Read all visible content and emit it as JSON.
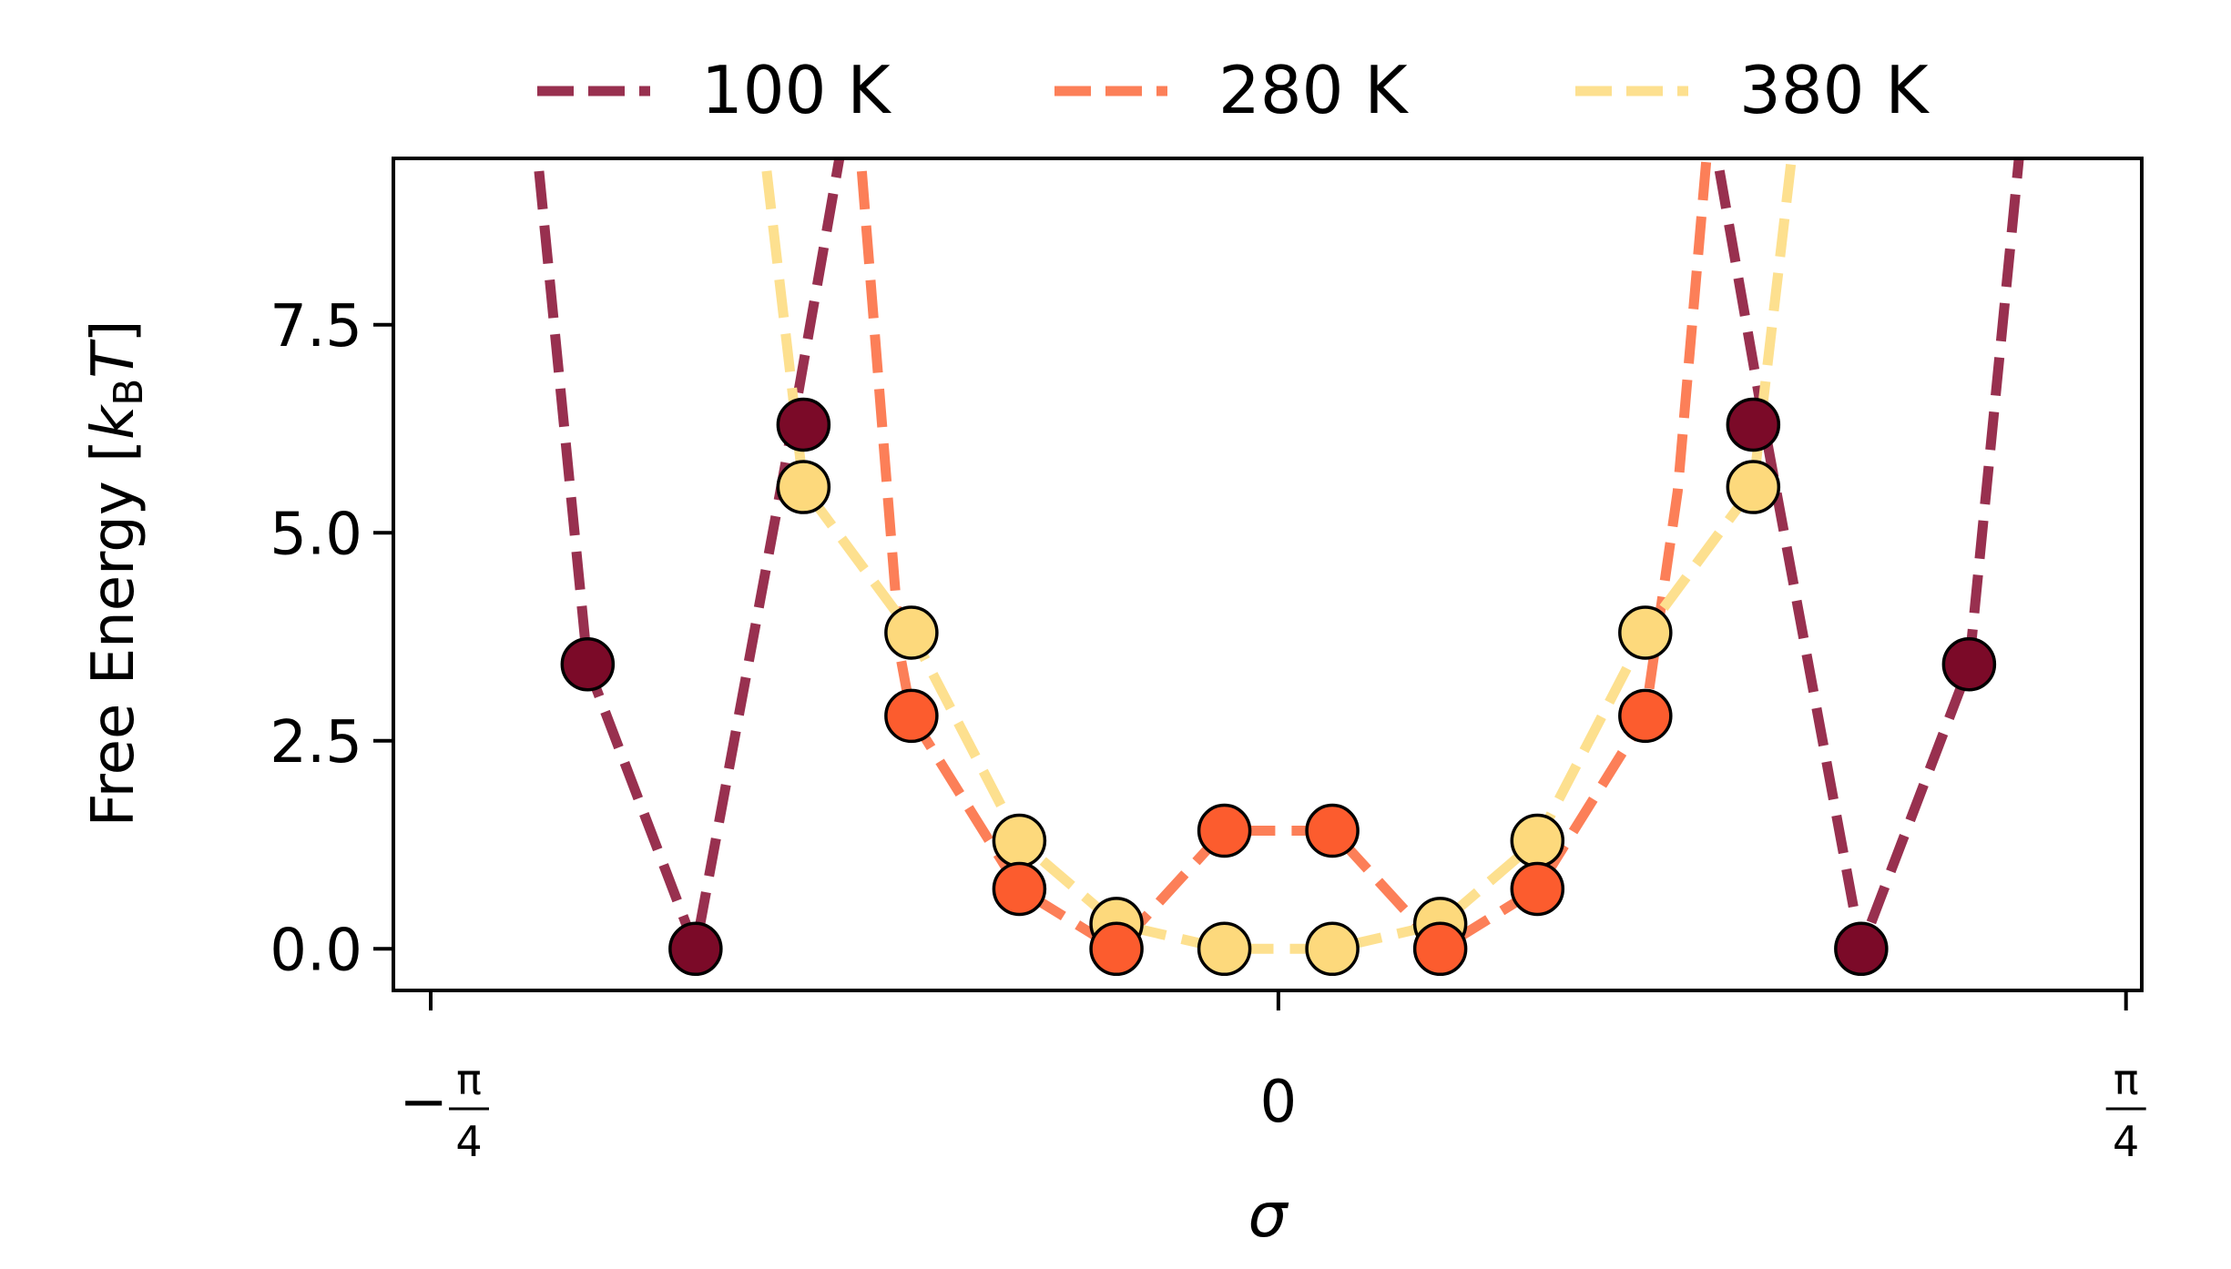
{
  "chart_data": {
    "type": "line",
    "title": "",
    "xlabel": "σ",
    "ylabel_parts": {
      "main": "Free Energy [",
      "k": "k",
      "sub": "B",
      "T": "T",
      "close": "]"
    },
    "xlim": [
      -0.82,
      0.8
    ],
    "ylim": [
      -0.5,
      9.5
    ],
    "yticks": [
      0.0,
      2.5,
      5.0,
      7.5
    ],
    "ytick_labels": [
      "0.0",
      "2.5",
      "5.0",
      "7.5"
    ],
    "xticks": [
      {
        "value": -0.7854,
        "minus": "−",
        "num": "π",
        "den": "4"
      },
      {
        "value": 0,
        "text": "0"
      },
      {
        "value": 0.7854,
        "minus": "",
        "num": "π",
        "den": "4"
      }
    ],
    "legend": {
      "placement": "top-center, outside plot"
    },
    "series": [
      {
        "name": "100 K",
        "color": "#98304f",
        "marker_color": "#7b0a28",
        "line_x": [
          -0.69,
          -0.64,
          -0.54,
          -0.45,
          -0.4
        ],
        "line_y": [
          10.0,
          3.4,
          0.0,
          6.3,
          10.0
        ],
        "line_x_right": [
          0.4,
          0.45,
          0.54,
          0.64,
          0.69
        ],
        "line_y_right": [
          10.0,
          6.3,
          0.0,
          3.4,
          10.0
        ],
        "points_x": [
          -0.64,
          -0.54,
          -0.44,
          0.44,
          0.54,
          0.64
        ],
        "points_y": [
          3.42,
          0.0,
          6.3,
          6.3,
          0.0,
          3.42
        ]
      },
      {
        "name": "280 K",
        "color": "#fc7f58",
        "marker_color": "#fc5c2e",
        "line_x": [
          -0.39,
          -0.35,
          -0.34,
          -0.24,
          -0.15,
          -0.05,
          0.05,
          0.15,
          0.24,
          0.34,
          0.37,
          0.4
        ],
        "line_y": [
          10.0,
          3.5,
          2.8,
          0.72,
          0.0,
          1.42,
          1.42,
          0.0,
          0.72,
          2.8,
          5.5,
          10.0
        ],
        "points_x": [
          -0.34,
          -0.24,
          -0.15,
          -0.05,
          0.05,
          0.15,
          0.24,
          0.34
        ],
        "points_y": [
          2.8,
          0.72,
          0.0,
          1.42,
          1.42,
          0.0,
          0.72,
          2.8
        ]
      },
      {
        "name": "380 K",
        "color": "#fde08f",
        "marker_color": "#fdd97c",
        "line_x": [
          -0.48,
          -0.44,
          -0.34,
          -0.24,
          -0.15,
          -0.05,
          0.05,
          0.15,
          0.24,
          0.34,
          0.44,
          0.48
        ],
        "line_y": [
          10.0,
          5.55,
          3.8,
          1.3,
          0.3,
          0.0,
          0.0,
          0.3,
          1.3,
          3.8,
          5.55,
          10.0
        ],
        "points_x": [
          -0.44,
          -0.34,
          -0.24,
          -0.15,
          -0.05,
          0.05,
          0.15,
          0.24,
          0.34,
          0.44
        ],
        "points_y": [
          5.55,
          3.8,
          1.3,
          0.3,
          0.0,
          0.0,
          0.3,
          1.3,
          3.8,
          5.55
        ]
      }
    ]
  }
}
